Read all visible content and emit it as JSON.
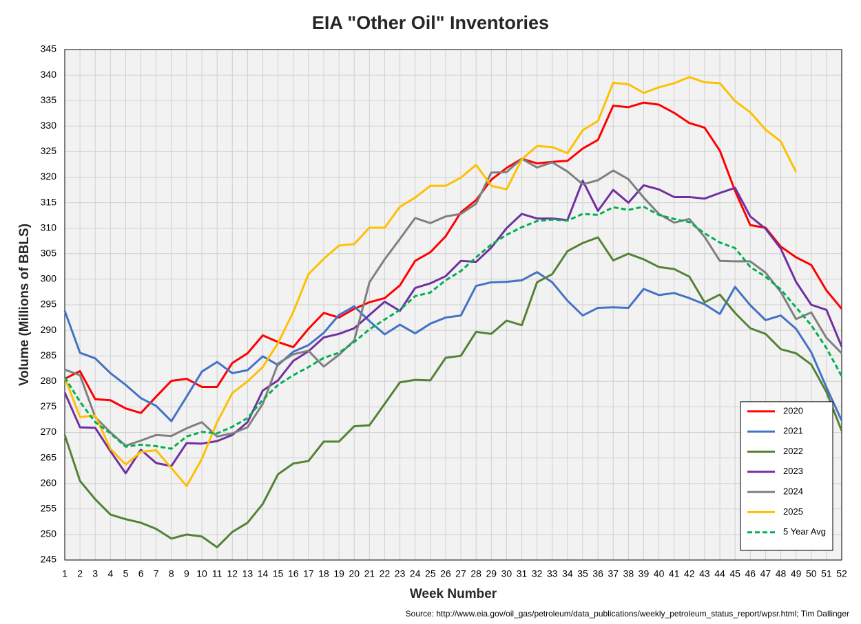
{
  "chart_data": {
    "type": "line",
    "title": "EIA \"Other Oil\" Inventories",
    "x_label": "Week Number",
    "y_label": "Volume (Millions of BBLS)",
    "source": "Source: http://www.eia.gov/oil_gas/petroleum/data_publications/weekly_petroleum_status_report/wpsr.html; Tim Dallinger",
    "x": [
      1,
      2,
      3,
      4,
      5,
      6,
      7,
      8,
      9,
      10,
      11,
      12,
      13,
      14,
      15,
      16,
      17,
      18,
      19,
      20,
      21,
      22,
      23,
      24,
      25,
      26,
      27,
      28,
      29,
      30,
      31,
      32,
      33,
      34,
      35,
      36,
      37,
      38,
      39,
      40,
      41,
      42,
      43,
      44,
      45,
      46,
      47,
      48,
      49,
      50,
      51,
      52
    ],
    "xlim": [
      1,
      52
    ],
    "xticks": [
      1,
      2,
      3,
      4,
      5,
      6,
      7,
      8,
      9,
      10,
      11,
      12,
      13,
      14,
      15,
      16,
      17,
      18,
      19,
      20,
      21,
      22,
      23,
      24,
      25,
      26,
      27,
      28,
      29,
      30,
      31,
      32,
      33,
      34,
      35,
      36,
      37,
      38,
      39,
      40,
      41,
      42,
      43,
      44,
      45,
      46,
      47,
      48,
      49,
      50,
      51,
      52
    ],
    "ylim": [
      245,
      345
    ],
    "yticks": [
      245,
      250,
      255,
      260,
      265,
      270,
      275,
      280,
      285,
      290,
      295,
      300,
      305,
      310,
      315,
      320,
      325,
      330,
      335,
      340,
      345
    ],
    "grid": true,
    "legend": "lower right",
    "series": [
      {
        "name": "2020",
        "color": "#ff0000",
        "values": [
          280.5,
          282,
          276.5,
          276.3,
          274.7,
          273.8,
          277,
          280.1,
          280.5,
          278.9,
          278.9,
          283.6,
          285.5,
          289,
          287.7,
          286.7,
          290.3,
          293.4,
          292.5,
          294.2,
          295.5,
          296.3,
          298.8,
          303.6,
          305.3,
          308.4,
          313.1,
          315.5,
          319.5,
          321.8,
          323.6,
          322.7,
          323,
          323.2,
          325.6,
          327.3,
          334,
          333.7,
          334.6,
          334.2,
          332.6,
          330.6,
          329.7,
          325.2,
          317.3,
          310.6,
          310.1,
          306.4,
          304.3,
          302.8,
          297.8,
          294.2
        ]
      },
      {
        "name": "2021",
        "color": "#4472c4",
        "values": [
          293.8,
          285.6,
          284.5,
          281.6,
          279.3,
          276.7,
          275.2,
          272.2,
          277,
          281.9,
          283.8,
          281.6,
          282.2,
          284.9,
          283.2,
          285.8,
          287.1,
          289.5,
          293,
          294.7,
          291.8,
          289.2,
          291.1,
          289.4,
          291.3,
          292.5,
          292.9,
          298.7,
          299.4,
          299.5,
          299.8,
          301.4,
          299.4,
          295.8,
          292.9,
          294.4,
          294.5,
          294.4,
          298.1,
          296.9,
          297.3,
          296.3,
          295.1,
          293.2,
          298.5,
          294.9,
          292,
          292.9,
          290.3,
          285.7,
          278.8,
          272.3
        ]
      },
      {
        "name": "2022",
        "color": "#548235",
        "values": [
          269.5,
          260.5,
          256.9,
          253.9,
          253,
          252.3,
          251.1,
          249.2,
          250,
          249.6,
          247.5,
          250.5,
          252.3,
          256,
          261.8,
          263.9,
          264.4,
          268.2,
          268.2,
          271.2,
          271.4,
          275.6,
          279.8,
          280.3,
          280.2,
          284.6,
          285,
          289.7,
          289.3,
          291.9,
          291,
          299.4,
          301,
          305.5,
          307.1,
          308.2,
          303.7,
          305,
          303.9,
          302.4,
          302,
          300.5,
          295.5,
          297,
          293.4,
          290.4,
          289.3,
          286.3,
          285.5,
          283.3,
          277.9,
          270.3
        ]
      },
      {
        "name": "2023",
        "color": "#7030a0",
        "values": [
          277.8,
          271,
          270.9,
          266.3,
          262,
          266.6,
          264,
          263.4,
          267.9,
          267.8,
          268.3,
          269.5,
          272,
          278.2,
          280.2,
          284,
          285.9,
          288.6,
          289.3,
          290.4,
          293,
          295.6,
          293.8,
          298.3,
          299.2,
          300.6,
          303.6,
          303.4,
          306.2,
          310,
          312.8,
          311.9,
          311.9,
          311.6,
          319.3,
          313.4,
          317.5,
          315,
          318.4,
          317.6,
          316.1,
          316.1,
          315.8,
          316.9,
          317.9,
          312.3,
          309.9,
          306,
          299.5,
          295,
          294,
          286.8
        ]
      },
      {
        "name": "2024",
        "color": "#7f7f7f",
        "values": [
          282.3,
          281.2,
          273,
          270,
          267.4,
          268.4,
          269.5,
          269.3,
          270.8,
          272,
          269.2,
          269.8,
          271,
          275.6,
          283.5,
          285.3,
          286,
          282.9,
          285.2,
          288,
          299.4,
          303.9,
          307.9,
          312,
          311,
          312.3,
          312.8,
          314.8,
          320.9,
          321,
          323.6,
          321.9,
          322.9,
          321.1,
          318.6,
          319.4,
          321.3,
          319.6,
          316,
          312.8,
          311.1,
          311.8,
          308.3,
          303.6,
          303.5,
          303.5,
          301.3,
          297.5,
          292.2,
          293.5,
          288.5,
          285.5
        ]
      },
      {
        "name": "2025",
        "color": "#ffc000",
        "values": [
          280.8,
          273,
          273.3,
          266.8,
          263.7,
          266.2,
          266.5,
          263,
          259.5,
          264.8,
          272,
          277.7,
          280,
          282.8,
          287.5,
          293.6,
          301,
          304,
          306.6,
          306.9,
          310.1,
          310.1,
          314.2,
          316,
          318.3,
          318.3,
          319.9,
          322.4,
          318.3,
          317.6,
          323.5,
          326.1,
          325.9,
          324.7,
          329.2,
          331,
          338.5,
          338.2,
          336.5,
          337.6,
          338.4,
          339.6,
          338.6,
          338.4,
          334.9,
          332.7,
          329.3,
          327,
          321,
          null,
          null,
          null
        ]
      },
      {
        "name": "5 Year Avg",
        "color": "#00b050",
        "dashed": true,
        "values": [
          280.8,
          276,
          272,
          269.8,
          267.2,
          267.6,
          267.3,
          266.8,
          269.2,
          270.1,
          269.8,
          271.1,
          272.8,
          276.4,
          279.3,
          281.2,
          282.8,
          284.6,
          285.6,
          287.7,
          290.2,
          292.1,
          294,
          296.7,
          297.4,
          299.8,
          301.6,
          304.3,
          306.8,
          308.7,
          310.2,
          311.4,
          311.7,
          311.5,
          312.8,
          312.6,
          314.1,
          313.6,
          314.2,
          312.6,
          311.8,
          311.2,
          309,
          307.2,
          306.1,
          302.4,
          300.5,
          298,
          294.5,
          291,
          286.5,
          281
        ]
      }
    ]
  }
}
